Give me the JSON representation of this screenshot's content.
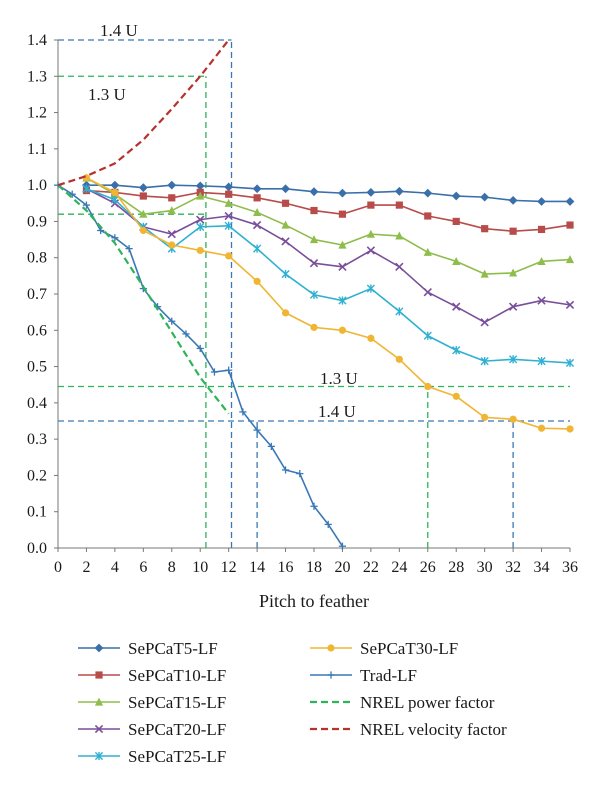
{
  "chart_data": {
    "type": "line",
    "xlabel": "Pitch to feather",
    "ylabel": "",
    "xlim": [
      0,
      36
    ],
    "ylim": [
      0,
      1.4
    ],
    "xticks": [
      0,
      2,
      4,
      6,
      8,
      10,
      12,
      14,
      16,
      18,
      20,
      22,
      24,
      26,
      28,
      30,
      32,
      34,
      36
    ],
    "yticks": [
      0.0,
      0.1,
      0.2,
      0.3,
      0.4,
      0.5,
      0.6,
      0.7,
      0.8,
      0.9,
      1.0,
      1.1,
      1.2,
      1.3,
      1.4
    ],
    "grid": false,
    "legend_position": "bottom",
    "series": [
      {
        "name": "SePCaT5-LF",
        "color": "#3a6faa",
        "marker": "diamond",
        "dash": false,
        "x": [
          2,
          4,
          6,
          8,
          10,
          12,
          14,
          16,
          18,
          20,
          22,
          24,
          26,
          28,
          30,
          32,
          34,
          36
        ],
        "y": [
          1.0,
          1.0,
          0.993,
          1.0,
          0.998,
          0.995,
          0.99,
          0.99,
          0.982,
          0.978,
          0.98,
          0.983,
          0.978,
          0.97,
          0.967,
          0.958,
          0.955,
          0.955
        ]
      },
      {
        "name": "SePCaT10-LF",
        "color": "#b84c4a",
        "marker": "square",
        "dash": false,
        "x": [
          2,
          4,
          6,
          8,
          10,
          12,
          14,
          16,
          18,
          20,
          22,
          24,
          26,
          28,
          30,
          32,
          34,
          36
        ],
        "y": [
          0.985,
          0.98,
          0.97,
          0.965,
          0.98,
          0.975,
          0.965,
          0.95,
          0.93,
          0.92,
          0.945,
          0.945,
          0.915,
          0.9,
          0.88,
          0.873,
          0.878,
          0.89
        ]
      },
      {
        "name": "SePCaT15-LF",
        "color": "#8fbd4c",
        "marker": "triangle",
        "dash": false,
        "x": [
          2,
          4,
          6,
          8,
          10,
          12,
          14,
          16,
          18,
          20,
          22,
          24,
          26,
          28,
          30,
          32,
          34,
          36
        ],
        "y": [
          1.02,
          0.975,
          0.92,
          0.93,
          0.97,
          0.95,
          0.925,
          0.89,
          0.85,
          0.835,
          0.865,
          0.86,
          0.815,
          0.79,
          0.755,
          0.758,
          0.79,
          0.795
        ]
      },
      {
        "name": "SePCaT20-LF",
        "color": "#7a4f9a",
        "marker": "x",
        "dash": false,
        "x": [
          2,
          4,
          6,
          8,
          10,
          12,
          14,
          16,
          18,
          20,
          22,
          24,
          26,
          28,
          30,
          32,
          34,
          36
        ],
        "y": [
          0.99,
          0.95,
          0.885,
          0.865,
          0.905,
          0.915,
          0.89,
          0.845,
          0.785,
          0.775,
          0.82,
          0.775,
          0.705,
          0.665,
          0.622,
          0.665,
          0.682,
          0.67
        ]
      },
      {
        "name": "SePCaT25-LF",
        "color": "#2fb0d2",
        "marker": "star",
        "dash": false,
        "x": [
          2,
          4,
          6,
          8,
          10,
          12,
          14,
          16,
          18,
          20,
          22,
          24,
          26,
          28,
          30,
          32,
          34,
          36
        ],
        "y": [
          0.99,
          0.96,
          0.885,
          0.825,
          0.885,
          0.888,
          0.825,
          0.755,
          0.698,
          0.682,
          0.715,
          0.652,
          0.585,
          0.545,
          0.515,
          0.52,
          0.515,
          0.51
        ]
      },
      {
        "name": "SePCaT30-LF",
        "color": "#f0b532",
        "marker": "circle",
        "dash": false,
        "x": [
          2,
          4,
          6,
          8,
          10,
          12,
          14,
          16,
          18,
          20,
          22,
          24,
          26,
          28,
          30,
          32,
          34,
          36
        ],
        "y": [
          1.02,
          0.98,
          0.875,
          0.835,
          0.82,
          0.805,
          0.735,
          0.648,
          0.608,
          0.6,
          0.578,
          0.52,
          0.445,
          0.418,
          0.36,
          0.355,
          0.33,
          0.328
        ]
      },
      {
        "name": "Trad-LF",
        "color": "#3a78b5",
        "marker": "plus",
        "dash": false,
        "x": [
          0,
          1,
          2,
          3,
          4,
          5,
          6,
          7,
          8,
          9,
          10,
          11,
          12,
          13,
          14,
          15,
          16,
          17,
          18,
          19,
          20
        ],
        "y": [
          1.0,
          0.975,
          0.945,
          0.875,
          0.855,
          0.825,
          0.715,
          0.665,
          0.625,
          0.59,
          0.55,
          0.485,
          0.49,
          0.375,
          0.325,
          0.28,
          0.215,
          0.205,
          0.115,
          0.065,
          0.005
        ]
      },
      {
        "name": "NREL power factor",
        "color": "#2fb35a",
        "marker": "none",
        "dash": true,
        "x": [
          0,
          2,
          4,
          6,
          8,
          10,
          12
        ],
        "y": [
          1.0,
          0.93,
          0.84,
          0.72,
          0.595,
          0.47,
          0.37
        ]
      },
      {
        "name": "NREL velocity factor",
        "color": "#b5322d",
        "marker": "none",
        "dash": true,
        "x": [
          0,
          2,
          4,
          6,
          8,
          10,
          12
        ],
        "y": [
          1.0,
          1.025,
          1.06,
          1.125,
          1.21,
          1.3,
          1.4
        ]
      }
    ],
    "annotations": [
      {
        "text": "1.4 U",
        "color": "#3a78b5"
      },
      {
        "text": "1.3 U",
        "color": "#2fb35a"
      },
      {
        "text": "1.3 U",
        "color": "#2fb35a"
      },
      {
        "text": "1.4 U",
        "color": "#3a78b5"
      }
    ],
    "reference_lines": [
      {
        "kind": "h",
        "y": 1.4,
        "x0": 0,
        "x1": 12.2,
        "color": "#3a78b5"
      },
      {
        "kind": "v",
        "x": 12.2,
        "y0": 0,
        "y1": 1.4,
        "color": "#3a78b5"
      },
      {
        "kind": "h",
        "y": 1.3,
        "x0": 0,
        "x1": 10.4,
        "color": "#2fb35a"
      },
      {
        "kind": "v",
        "x": 10.4,
        "y0": 0,
        "y1": 1.3,
        "color": "#2fb35a"
      },
      {
        "kind": "h",
        "y": 0.92,
        "x0": 0,
        "x1": 10.4,
        "color": "#2fb35a"
      },
      {
        "kind": "h",
        "y": 0.445,
        "x0": 0,
        "x1": 36,
        "color": "#2fb35a"
      },
      {
        "kind": "v",
        "x": 26,
        "y0": 0,
        "y1": 0.445,
        "color": "#2fb35a"
      },
      {
        "kind": "h",
        "y": 0.35,
        "x0": 0,
        "x1": 36,
        "color": "#3a78b5"
      },
      {
        "kind": "v",
        "x": 14,
        "y0": 0,
        "y1": 0.35,
        "color": "#3a78b5"
      },
      {
        "kind": "v",
        "x": 32,
        "y0": 0,
        "y1": 0.35,
        "color": "#3a78b5"
      }
    ]
  }
}
